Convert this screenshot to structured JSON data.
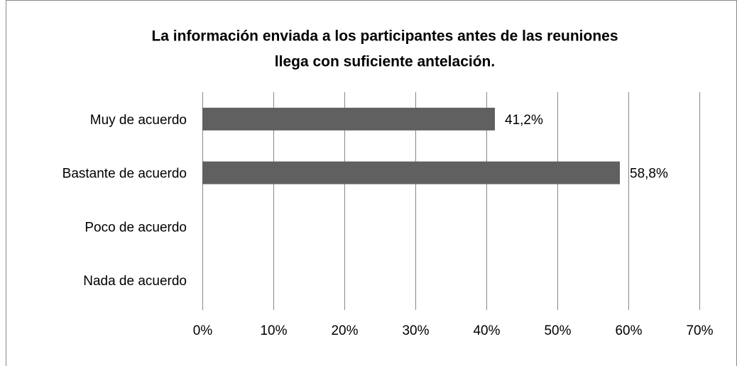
{
  "chart_data": {
    "type": "bar",
    "orientation": "horizontal",
    "title": [
      "La información enviada a los participantes antes de las reuniones",
      "llega con suficiente antelación."
    ],
    "categories": [
      "Muy de acuerdo",
      "Bastante de acuerdo",
      "Poco de acuerdo",
      "Nada de acuerdo"
    ],
    "values": [
      41.2,
      58.8,
      null,
      null
    ],
    "value_labels": [
      "41,2%",
      "58,8%",
      null,
      null
    ],
    "color": "#606060",
    "xlim": [
      0,
      70
    ],
    "xticks": [
      {
        "value": 0,
        "label": "0%"
      },
      {
        "value": 10,
        "label": "10%"
      },
      {
        "value": 20,
        "label": "20%"
      },
      {
        "value": 30,
        "label": "30%"
      },
      {
        "value": 40,
        "label": "40%"
      },
      {
        "value": 50,
        "label": "50%"
      },
      {
        "value": 60,
        "label": "60%"
      },
      {
        "value": 70,
        "label": "70%"
      }
    ],
    "grid": true
  }
}
